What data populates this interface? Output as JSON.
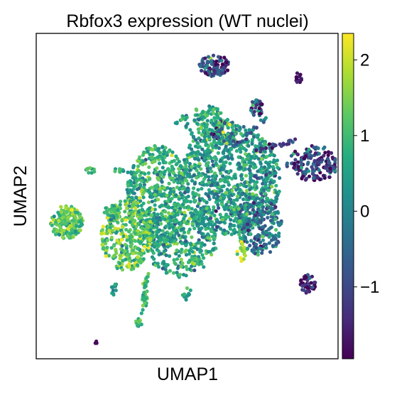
{
  "chart_data": {
    "type": "scatter",
    "title": "Rbfox3 expression (WT nuclei)",
    "xlabel": "UMAP1",
    "ylabel": "UMAP2",
    "xticks": [],
    "yticks": [],
    "colorbar": {
      "colormap": "viridis",
      "vmin": -1.95,
      "vmax": 2.35,
      "ticks": [
        2,
        1,
        0,
        -1
      ],
      "tick_labels": [
        "2",
        "1",
        "0",
        "−1"
      ]
    },
    "grid": false,
    "clusters": [
      {
        "x": 0.64,
        "y": 0.55,
        "rx": 0.17,
        "ry": 0.17,
        "n": 950,
        "value": 0.4,
        "spread": 0.55
      },
      {
        "x": 0.4,
        "y": 0.5,
        "rx": 0.1,
        "ry": 0.16,
        "n": 520,
        "value": 0.7,
        "spread": 0.55
      },
      {
        "x": 0.48,
        "y": 0.36,
        "rx": 0.12,
        "ry": 0.11,
        "n": 320,
        "value": 0.6,
        "spread": 0.6
      },
      {
        "x": 0.3,
        "y": 0.38,
        "rx": 0.085,
        "ry": 0.11,
        "n": 330,
        "value": 1.3,
        "spread": 0.55
      },
      {
        "x": 0.1,
        "y": 0.42,
        "rx": 0.055,
        "ry": 0.05,
        "n": 170,
        "value": 1.2,
        "spread": 0.5
      },
      {
        "x": 0.74,
        "y": 0.41,
        "rx": 0.075,
        "ry": 0.095,
        "n": 230,
        "value": -0.2,
        "spread": 0.7
      },
      {
        "x": 0.92,
        "y": 0.6,
        "rx": 0.09,
        "ry": 0.055,
        "n": 170,
        "value": -1.0,
        "spread": 0.8
      },
      {
        "x": 0.57,
        "y": 0.73,
        "rx": 0.05,
        "ry": 0.05,
        "n": 90,
        "value": 0.7,
        "spread": 0.5
      },
      {
        "x": 0.62,
        "y": 0.7,
        "rx": 0.04,
        "ry": 0.04,
        "n": 50,
        "value": 0.1,
        "spread": 0.8
      },
      {
        "x": 0.59,
        "y": 0.9,
        "rx": 0.05,
        "ry": 0.035,
        "n": 110,
        "value": -1.2,
        "spread": 0.9
      },
      {
        "x": 0.87,
        "y": 0.86,
        "rx": 0.012,
        "ry": 0.02,
        "n": 12,
        "value": -1.6,
        "spread": 0.3
      },
      {
        "x": 0.73,
        "y": 0.77,
        "rx": 0.02,
        "ry": 0.03,
        "n": 35,
        "value": -0.8,
        "spread": 0.9
      },
      {
        "x": 0.9,
        "y": 0.23,
        "rx": 0.025,
        "ry": 0.03,
        "n": 40,
        "value": -1.4,
        "spread": 0.6
      },
      {
        "x": 0.68,
        "y": 0.33,
        "rx": 0.015,
        "ry": 0.03,
        "n": 18,
        "value": 1.9,
        "spread": 0.4
      },
      {
        "x": 0.36,
        "y": 0.2,
        "rx": 0.01,
        "ry": 0.04,
        "n": 22,
        "value": 1.0,
        "spread": 0.4
      },
      {
        "x": 0.34,
        "y": 0.11,
        "rx": 0.01,
        "ry": 0.015,
        "n": 12,
        "value": 0.8,
        "spread": 0.4
      },
      {
        "x": 0.5,
        "y": 0.2,
        "rx": 0.015,
        "ry": 0.02,
        "n": 12,
        "value": 0.5,
        "spread": 0.4
      },
      {
        "x": 0.26,
        "y": 0.21,
        "rx": 0.015,
        "ry": 0.02,
        "n": 10,
        "value": 0.5,
        "spread": 0.4
      },
      {
        "x": 0.52,
        "y": 0.3,
        "rx": 0.02,
        "ry": 0.015,
        "n": 15,
        "value": 1.0,
        "spread": 0.5
      },
      {
        "x": 0.25,
        "y": 0.45,
        "rx": 0.025,
        "ry": 0.025,
        "n": 30,
        "value": 0.9,
        "spread": 0.5
      },
      {
        "x": 0.68,
        "y": 0.44,
        "rx": 0.02,
        "ry": 0.03,
        "n": 20,
        "value": 0.5,
        "spread": 0.6
      },
      {
        "x": 0.2,
        "y": 0.05,
        "rx": 0.006,
        "ry": 0.005,
        "n": 3,
        "value": -1.8,
        "spread": 0.1
      },
      {
        "x": 0.26,
        "y": 0.45,
        "rx": 0.015,
        "ry": 0.02,
        "n": 8,
        "value": 0.8,
        "spread": 0.4
      },
      {
        "x": 0.18,
        "y": 0.58,
        "rx": 0.015,
        "ry": 0.01,
        "n": 10,
        "value": 0.9,
        "spread": 0.4
      }
    ],
    "paths": [
      {
        "x1": 0.55,
        "y1": 0.61,
        "x2": 0.6,
        "y2": 0.66,
        "n": 20,
        "value": 0.5,
        "spread": 0.5
      },
      {
        "x1": 0.66,
        "y1": 0.65,
        "x2": 0.76,
        "y2": 0.74,
        "n": 25,
        "value": -0.6,
        "spread": 0.8
      },
      {
        "x1": 0.73,
        "y1": 0.64,
        "x2": 0.86,
        "y2": 0.67,
        "n": 30,
        "value": -1.3,
        "spread": 0.5
      },
      {
        "x1": 0.57,
        "y1": 0.68,
        "x2": 0.66,
        "y2": 0.68,
        "n": 18,
        "value": 0.1,
        "spread": 0.9
      },
      {
        "x1": 0.37,
        "y1": 0.27,
        "x2": 0.35,
        "y2": 0.14,
        "n": 20,
        "value": 1.0,
        "spread": 0.4
      },
      {
        "x1": 0.26,
        "y1": 0.58,
        "x2": 0.32,
        "y2": 0.57,
        "n": 12,
        "value": 0.7,
        "spread": 0.4
      },
      {
        "x1": 0.46,
        "y1": 0.72,
        "x2": 0.54,
        "y2": 0.77,
        "n": 12,
        "value": 0.6,
        "spread": 0.6
      },
      {
        "x1": 0.71,
        "y1": 0.55,
        "x2": 0.8,
        "y2": 0.57,
        "n": 12,
        "value": -0.4,
        "spread": 0.7
      },
      {
        "x1": 0.49,
        "y1": 0.74,
        "x2": 0.52,
        "y2": 0.68,
        "n": 10,
        "value": 0.6,
        "spread": 0.5
      }
    ]
  }
}
